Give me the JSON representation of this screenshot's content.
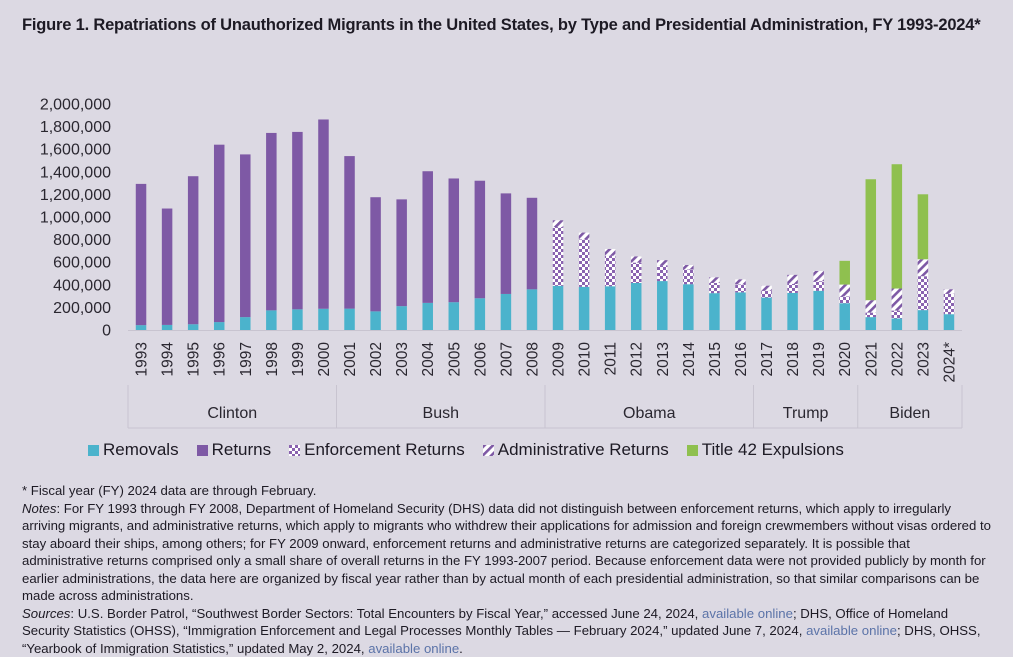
{
  "title": "Figure 1. Repatriations of Unauthorized Migrants in the United States, by Type and Presidential Administration, FY 1993-2024*",
  "colors": {
    "removals": "#4bb3cc",
    "returns": "#7e59a5",
    "enforcement_returns": "#8a63b0",
    "administrative_returns": "#7e59a5",
    "title42": "#8fc04f"
  },
  "chart_data": {
    "type": "bar",
    "stacked": true,
    "categories": [
      "1993",
      "1994",
      "1995",
      "1996",
      "1997",
      "1998",
      "1999",
      "2000",
      "2001",
      "2002",
      "2003",
      "2004",
      "2005",
      "2006",
      "2007",
      "2008",
      "2009",
      "2010",
      "2011",
      "2012",
      "2013",
      "2014",
      "2015",
      "2016",
      "2017",
      "2018",
      "2019",
      "2020",
      "2021",
      "2022",
      "2023",
      "2024*"
    ],
    "series": [
      {
        "name": "Removals",
        "key": "removals",
        "values": [
          43000,
          45000,
          51000,
          70000,
          114000,
          174000,
          183000,
          188000,
          189000,
          165000,
          211000,
          240000,
          246000,
          281000,
          319000,
          360000,
          391000,
          382000,
          387000,
          416000,
          433000,
          405000,
          326000,
          333000,
          287000,
          328000,
          347000,
          237000,
          114000,
          102000,
          176000,
          140000
        ]
      },
      {
        "name": "Returns",
        "key": "returns",
        "values": [
          1250000,
          1030000,
          1310000,
          1570000,
          1440000,
          1570000,
          1570000,
          1675000,
          1350000,
          1010000,
          945000,
          1165000,
          1095000,
          1040000,
          890000,
          810000,
          0,
          0,
          0,
          0,
          0,
          0,
          0,
          0,
          0,
          0,
          0,
          0,
          0,
          0,
          0,
          0
        ]
      },
      {
        "name": "Enforcement Returns",
        "key": "enforcement_returns",
        "values": [
          0,
          0,
          0,
          0,
          0,
          0,
          0,
          0,
          0,
          0,
          0,
          0,
          0,
          0,
          0,
          0,
          520000,
          420000,
          270000,
          180000,
          140000,
          130000,
          90000,
          70000,
          60000,
          80000,
          85000,
          60000,
          40000,
          70000,
          300000,
          180000
        ]
      },
      {
        "name": "Administrative Returns",
        "key": "administrative_returns",
        "values": [
          0,
          0,
          0,
          0,
          0,
          0,
          0,
          0,
          0,
          0,
          0,
          0,
          0,
          0,
          0,
          0,
          60000,
          60000,
          60000,
          55000,
          45000,
          40000,
          50000,
          45000,
          45000,
          80000,
          90000,
          105000,
          110000,
          195000,
          150000,
          40000
        ]
      },
      {
        "name": "Title 42 Expulsions",
        "key": "title42",
        "values": [
          0,
          0,
          0,
          0,
          0,
          0,
          0,
          0,
          0,
          0,
          0,
          0,
          0,
          0,
          0,
          0,
          0,
          0,
          0,
          0,
          0,
          0,
          0,
          0,
          0,
          0,
          0,
          210000,
          1070000,
          1100000,
          575000,
          0
        ]
      }
    ],
    "administrations": [
      {
        "name": "Clinton",
        "start": 0,
        "end": 7
      },
      {
        "name": "Bush",
        "start": 8,
        "end": 15
      },
      {
        "name": "Obama",
        "start": 16,
        "end": 23
      },
      {
        "name": "Trump",
        "start": 24,
        "end": 27
      },
      {
        "name": "Biden",
        "start": 28,
        "end": 31
      }
    ],
    "y_ticks": [
      "2,000,000",
      "1,800,000",
      "1,600,000",
      "1,400,000",
      "1,200,000",
      "1,000,000",
      "800,000",
      "600,000",
      "400,000",
      "200,000",
      "0"
    ],
    "ylim": [
      0,
      2000000
    ],
    "xlabel": "",
    "ylabel": "",
    "legend_position": "bottom",
    "grid": false
  },
  "notes": {
    "footnote": "* Fiscal year (FY) 2024 data are through February.",
    "notes_label": "Notes",
    "notes_text": ": For FY 1993 through FY 2008, Department of Homeland Security (DHS) data did not distinguish between enforcement returns, which apply to irregularly arriving migrants, and administrative returns, which apply to migrants who withdrew their applications for admission and foreign crewmembers without visas ordered to stay aboard their ships, among others; for FY 2009 onward, enforcement returns and administrative returns are categorized separately. It is possible that administrative returns comprised only a small share of overall returns in the FY 1993-2007 period. Because enforcement data were not provided publicly by month for earlier administrations, the data here are organized by fiscal year rather than by actual month of each presidential administration, so that similar comparisons can be made across administrations.",
    "sources_label": "Sources",
    "sources_text_1": ": U.S. Border Patrol, “Southwest Border Sectors: Total Encounters by Fiscal Year,” accessed June 24, 2024, ",
    "link_1": "available online",
    "sources_text_2": "; DHS, Office of Homeland Security Statistics (OHSS), “Immigration Enforcement and Legal Processes Monthly Tables — February 2024,” updated June 7, 2024, ",
    "link_2": "available online",
    "sources_text_3": "; DHS, OHSS, “Yearbook of Immigration Statistics,” updated May 2, 2024, ",
    "link_3": "available online",
    "sources_text_4": "."
  }
}
